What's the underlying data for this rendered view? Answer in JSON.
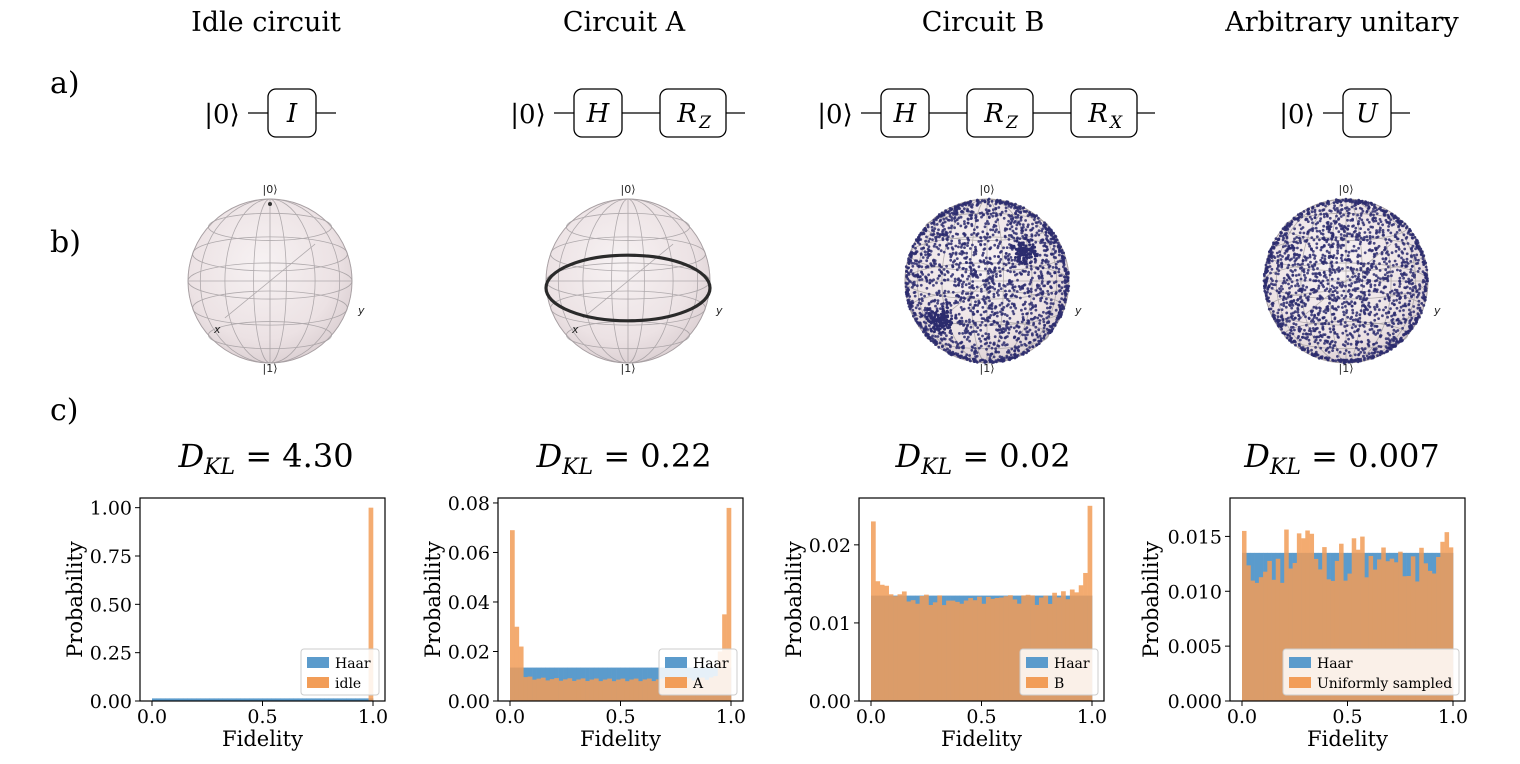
{
  "columns": [
    {
      "title": "Idle circuit",
      "gates": [
        "I"
      ],
      "gate_subs": [
        ""
      ]
    },
    {
      "title": "Circuit A",
      "gates": [
        "H",
        "R"
      ],
      "gate_subs": [
        "",
        "Z"
      ]
    },
    {
      "title": "Circuit B",
      "gates": [
        "H",
        "R",
        "R"
      ],
      "gate_subs": [
        "",
        "Z",
        "X"
      ]
    },
    {
      "title": "Arbitrary unitary",
      "gates": [
        "U"
      ],
      "gate_subs": [
        ""
      ]
    }
  ],
  "row_labels": {
    "a": "a)",
    "b": "b)",
    "c": "c)"
  },
  "ket0": "|0⟩",
  "bloch": {
    "pole_top": "|0⟩",
    "pole_bottom": "|1⟩",
    "x_label": "x",
    "y_label": "y"
  },
  "dkl_prefix": "D",
  "dkl_sub": "KL",
  "colors": {
    "haar": "#5b9bcc",
    "sample": "#f29d58",
    "frame": "#000000",
    "points": "#2c2c6e"
  },
  "chart_data": [
    {
      "type": "bar",
      "title": "D_KL = 4.30",
      "dkl_value": "4.30",
      "xlabel": "Fidelity",
      "ylabel": "Probability",
      "xlim": [
        0,
        1
      ],
      "ylim": [
        0,
        1.05
      ],
      "xticks": [
        "0.0",
        "0.5",
        "1.0"
      ],
      "yticks": [
        "0.00",
        "0.25",
        "0.50",
        "0.75",
        "1.00"
      ],
      "ytick_values": [
        0,
        0.25,
        0.5,
        0.75,
        1.0
      ],
      "haar_level": 0.0135,
      "series": [
        {
          "name": "Haar",
          "color": "#5b9bcc",
          "kind": "flat",
          "value": 0.0135
        },
        {
          "name": "idle",
          "color": "#f29d58",
          "kind": "spike",
          "x": 0.995,
          "value": 1.0
        }
      ],
      "legend": "bottom-right"
    },
    {
      "type": "bar",
      "title": "D_KL = 0.22",
      "dkl_value": "0.22",
      "xlabel": "Fidelity",
      "ylabel": "Probability",
      "xlim": [
        0,
        1
      ],
      "ylim": [
        0,
        0.082
      ],
      "xticks": [
        "0.0",
        "0.5",
        "1.0"
      ],
      "yticks": [
        "0.00",
        "0.02",
        "0.04",
        "0.06",
        "0.08"
      ],
      "ytick_values": [
        0,
        0.02,
        0.04,
        0.06,
        0.08
      ],
      "haar_level": 0.0135,
      "series": [
        {
          "name": "Haar",
          "color": "#5b9bcc",
          "kind": "flat",
          "value": 0.0135
        },
        {
          "name": "A",
          "color": "#f29d58",
          "kind": "ushape",
          "edge_left": 0.069,
          "edge_right": 0.078,
          "floor": 0.0085
        }
      ],
      "legend": "bottom-right"
    },
    {
      "type": "bar",
      "title": "D_KL = 0.02",
      "dkl_value": "0.02",
      "xlabel": "Fidelity",
      "ylabel": "Probability",
      "xlim": [
        0,
        1
      ],
      "ylim": [
        0,
        0.026
      ],
      "xticks": [
        "0.0",
        "0.5",
        "1.0"
      ],
      "yticks": [
        "0.00",
        "0.01",
        "0.02"
      ],
      "ytick_values": [
        0,
        0.01,
        0.02
      ],
      "haar_level": 0.0135,
      "series": [
        {
          "name": "Haar",
          "color": "#5b9bcc",
          "kind": "flat",
          "value": 0.0135
        },
        {
          "name": "B",
          "color": "#f29d58",
          "kind": "noisy",
          "edge_left": 0.023,
          "edge_right": 0.025,
          "floor": 0.0125,
          "spread": 0.0012
        }
      ],
      "legend": "bottom-right"
    },
    {
      "type": "bar",
      "title": "D_KL = 0.007",
      "dkl_value": "0.007",
      "xlabel": "Fidelity",
      "ylabel": "Probability",
      "xlim": [
        0,
        1
      ],
      "ylim": [
        0,
        0.0185
      ],
      "xticks": [
        "0.0",
        "0.5",
        "1.0"
      ],
      "yticks": [
        "0.000",
        "0.005",
        "0.010",
        "0.015"
      ],
      "ytick_values": [
        0,
        0.005,
        0.01,
        0.015
      ],
      "haar_level": 0.0135,
      "series": [
        {
          "name": "Haar",
          "color": "#5b9bcc",
          "kind": "flat",
          "value": 0.0135
        },
        {
          "name": "Uniformly sampled",
          "color": "#f29d58",
          "kind": "noisy",
          "edge_left": 0.0155,
          "edge_right": 0.014,
          "floor": 0.0125,
          "spread": 0.0025
        }
      ],
      "legend": "bottom-right"
    }
  ]
}
